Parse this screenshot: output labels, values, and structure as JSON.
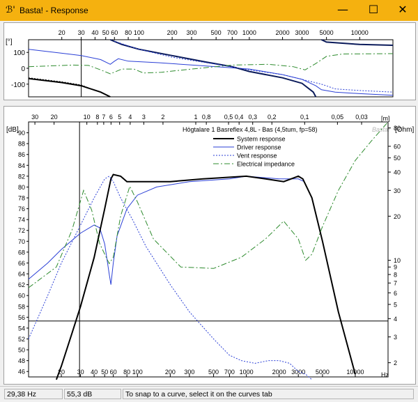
{
  "window": {
    "icon_glyph": "ℬ'",
    "title": "Basta! - Response",
    "minimize_glyph": "—",
    "maximize_glyph": "☐",
    "close_glyph": "✕"
  },
  "phase_chart": {
    "unit_label": "[°]",
    "y_ticks": [
      "100",
      "0",
      "-100"
    ],
    "x_ticks": [
      "20",
      "30",
      "40",
      "50",
      "60",
      "80",
      "100",
      "200",
      "300",
      "500",
      "700",
      "1000",
      "2000",
      "3000",
      "5000",
      "10000"
    ]
  },
  "main_chart": {
    "left_unit": "[dB]",
    "right_unit": "[Ohm]",
    "x_unit": "Hz",
    "wavelength_unit": "[m]",
    "brand_watermark": "Basta!",
    "graph_title": "Högtalare 1 Basreflex 4,8L - Bas (4,5tum, fp=58)",
    "db_ticks": [
      "90",
      "88",
      "86",
      "84",
      "82",
      "80",
      "78",
      "76",
      "74",
      "72",
      "70",
      "68",
      "66",
      "64",
      "62",
      "60",
      "58",
      "56",
      "54",
      "52",
      "50",
      "48",
      "46"
    ],
    "ohm_ticks": [
      "80",
      "60",
      "50",
      "40",
      "30",
      "20",
      "10",
      "9",
      "8",
      "7",
      "6",
      "5",
      "4",
      "3",
      "2"
    ],
    "x_ticks": [
      "20",
      "30",
      "40",
      "50",
      "60",
      "80",
      "100",
      "200",
      "300",
      "500",
      "700",
      "1000",
      "2000",
      "3000",
      "5000",
      "10000"
    ],
    "wavelength_ticks": [
      "30",
      "20",
      "10",
      "8",
      "7",
      "6",
      "5",
      "4",
      "3",
      "2",
      "1",
      "0,8",
      "0,5",
      "0,4",
      "0,3",
      "0,2",
      "0,1",
      "0,05",
      "0,03"
    ],
    "cursor_line": {
      "freq_hz": 29.38,
      "db": 55.3
    },
    "legend": [
      {
        "label": "System response",
        "color": "#000000",
        "style": "solid-bold"
      },
      {
        "label": "Driver response",
        "color": "#2a3fd6",
        "style": "solid"
      },
      {
        "label": "Vent response",
        "color": "#2a3fd6",
        "style": "dotted"
      },
      {
        "label": "Electrical impedance",
        "color": "#2e8b2e",
        "style": "dashdot"
      }
    ]
  },
  "status": {
    "frequency": "29,38 Hz",
    "level": "55,3 dB",
    "hint": "To snap to a curve, select it on the curves tab"
  }
}
